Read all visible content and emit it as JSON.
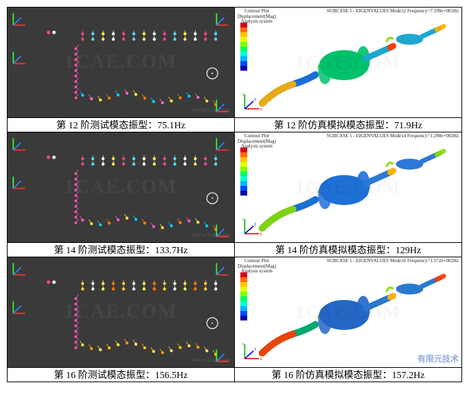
{
  "watermarks": {
    "cae": "1CAE.COM",
    "url": "www.1cae.com",
    "fet": "有限元技术",
    "fet_sub": "1CAE.com"
  },
  "colorbar": {
    "colors": [
      "#d6001c",
      "#ff6a00",
      "#ffc400",
      "#e3ff00",
      "#7cff00",
      "#00ff5a",
      "#00ffd4",
      "#00b6ff",
      "#0048ff",
      "#1000a8"
    ]
  },
  "sim_header_prefix": "SUBCASE 1 - EIGENVALUES",
  "sim_title_lines": [
    "Contour Plot",
    "Displacement(Mag)",
    "Analysis system"
  ],
  "rows": [
    {
      "order": 12,
      "left_caption": "第 12 阶测试模态振型：75.1Hz",
      "right_caption": "第 12 阶仿真模拟模态振型：71.9Hz",
      "test_freq_hz": 75.1,
      "sim_freq_hz": 71.9,
      "sim_header_right": "Mode12 Frequency=7.190e+001Hz",
      "dot_colors_top": [
        "#ff4488",
        "#55ddff",
        "#ffee55",
        "#ffffff"
      ],
      "dot_colors_bottom": [
        "#00d0ff",
        "#ff66cc",
        "#ffde44",
        "#ff7a00"
      ],
      "muffler_fill": "#00c26b",
      "pipe_fill": "#1ea7cf",
      "pipe_in": "#1b6ed6",
      "hot1": "#ffb000",
      "hot2": "#ff3a00"
    },
    {
      "order": 14,
      "left_caption": "第 14 阶测试模态振型：133.7Hz",
      "right_caption": "第 14 阶仿真模拟模态振型：129Hz",
      "test_freq_hz": 133.7,
      "sim_freq_hz": 129,
      "sim_header_right": "Mode14 Frequency=1.290e+002Hz",
      "dot_colors_top": [
        "#ff4488",
        "#55ddff",
        "#ffffff",
        "#ffee55"
      ],
      "dot_colors_bottom": [
        "#ff55cc",
        "#ffde44",
        "#00d0ff",
        "#ff7a00"
      ],
      "muffler_fill": "#1f6fd8",
      "pipe_fill": "#2c78d6",
      "pipe_in": "#1b6ed6",
      "hot1": "#8bde00",
      "hot2": "#ffb000"
    },
    {
      "order": 16,
      "left_caption": "第 16 阶测试模态振型：156.5Hz",
      "right_caption": "第 16 阶仿真模拟模态振型：157.2Hz",
      "test_freq_hz": 156.5,
      "sim_freq_hz": 157.2,
      "sim_header_right": "Mode16 Frequency=1.572e+002Hz",
      "dot_colors_top": [
        "#ffcc33",
        "#ffffff",
        "#ffee55",
        "#ff7a00"
      ],
      "dot_colors_bottom": [
        "#ffde44",
        "#ff9a00",
        "#ffe066",
        "#ffc400"
      ],
      "muffler_fill": "#2566c7",
      "pipe_fill": "#2a79cf",
      "pipe_in": "#00a86b",
      "hot1": "#ff3a00",
      "hot2": "#ffb000"
    }
  ]
}
